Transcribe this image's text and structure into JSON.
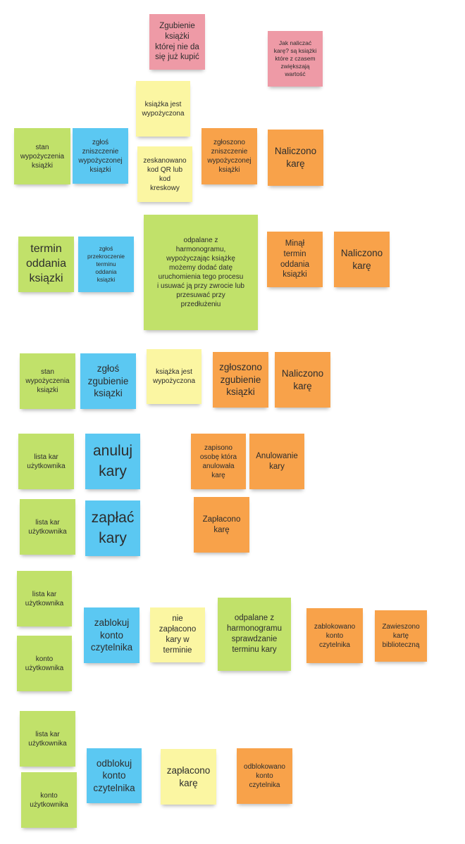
{
  "notes": {
    "n1": "Zgubienie\nksiążki\nktórej nie da\nsię już kupić",
    "n2": "Jak naliczać\nkarę? są książki\nktóre z czasem\nzwiększają\nwartość",
    "n3": "książka  jest\nwypożyczona",
    "n4": "stan\nwypożyczenia\nksiążki",
    "n5": "zgłoś\nzniszczenie\nwypożyczonej\nksiązki",
    "n6": "zeskanowano\nkod QR lub\nkod\nkreskowy",
    "n7": "zgłoszono\nzniszczenie\nwypożyczonej\nksiążki",
    "n8": "Naliczono\nkarę",
    "n9": "termin\noddania\nksiązki",
    "n10": "zgłoś\nprzekroczenie\nterminu\noddania\nksiązki",
    "n11": "odpalane z\nharmonogramu,\nwypożyczając książkę\nmożemy dodać datę\nuruchomienia tego procesu\ni usuwać ją przy zwrocie lub\nprzesuwać przy\nprzedłużeniu",
    "n12": "Minął\ntermin\noddania\nksiązki",
    "n13": "Naliczono\nkarę",
    "n14": "stan\nwypożyczenia\nksiązki",
    "n15": "zgłoś\nzgubienie\nksiązki",
    "n16": "książka jest\nwypożyczona",
    "n17": "zgłoszono\nzgubienie\nksiązki",
    "n18": "Naliczono\nkarę",
    "n19": "lista kar\nużytkownika",
    "n20": "anuluj\nkary",
    "n21": "zapisono\nosobę która\nanulowała\nkarę",
    "n22": "Anulowanie\nkary",
    "n23": "lista kar\nużytkownika",
    "n24": "zapłać\nkary",
    "n25": "Zapłacono\nkarę",
    "n26": "lista kar\nużytkownika",
    "n27": "konto\nużytkownika",
    "n28": "zablokuj\nkonto\nczytelnika",
    "n29": "nie\nzapłacono\nkary w\nterminie",
    "n30": "odpalane z\nharmonogramu\nsprawdzanie\nterminu kary",
    "n31": "zablokowano\nkonto\nczytelnika",
    "n32": "Zawieszono\nkartę\nbiblioteczną",
    "n33": "lista kar\nużytkownika",
    "n34": "konto\nużytkownika",
    "n35": "odblokuj\nkonto\nczytelnika",
    "n36": "zapłacono\nkarę",
    "n37": "odblokowano\nkonto\nczytelnika"
  },
  "colors": {
    "pink": "#ee9aa6",
    "yellow": "#fbf6a2",
    "green": "#c1e16a",
    "blue": "#5bc8f2",
    "orange": "#f8a24a"
  }
}
